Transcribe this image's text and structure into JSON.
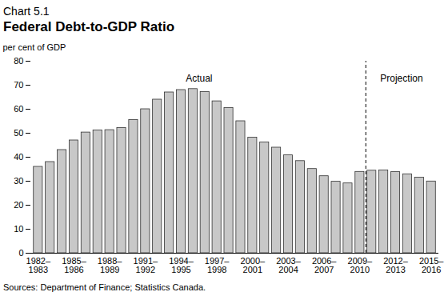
{
  "chart_data": {
    "type": "bar",
    "subtitle": "Chart 5.1",
    "title": "Federal Debt-to-GDP Ratio",
    "y_label": "per cent of GDP",
    "source": "Sources: Department of Finance; Statistics Canada.",
    "categories": [
      "1982–1983",
      null,
      null,
      "1985–1986",
      null,
      null,
      "1988–1989",
      null,
      null,
      "1991–1992",
      null,
      null,
      "1994–1995",
      null,
      null,
      "1997–1998",
      null,
      null,
      "2000–2001",
      null,
      null,
      "2003–2004",
      null,
      null,
      "2006–2007",
      null,
      null,
      "2009–2010",
      null,
      null,
      "2012–2013",
      null,
      null,
      "2015–2016"
    ],
    "series": [
      {
        "name": "Actual",
        "color": "#c8c8c8",
        "values": [
          36.0,
          38.0,
          43.0,
          47.0,
          50.3,
          51.2,
          51.3,
          52.2,
          55.5,
          60.0,
          64.0,
          67.0,
          68.0,
          68.4,
          67.2,
          63.3,
          60.5,
          55.0,
          48.2,
          46.2,
          44.0,
          40.8,
          38.4,
          35.1,
          32.1,
          29.8,
          29.1,
          33.9,
          null,
          null,
          null,
          null,
          null,
          null
        ]
      },
      {
        "name": "Projection",
        "color": "#c8c8c8",
        "values": [
          null,
          null,
          null,
          null,
          null,
          null,
          null,
          null,
          null,
          null,
          null,
          null,
          null,
          null,
          null,
          null,
          null,
          null,
          null,
          null,
          null,
          null,
          null,
          null,
          null,
          null,
          null,
          null,
          34.4,
          34.5,
          33.8,
          32.9,
          31.5,
          29.9
        ]
      }
    ],
    "ylim": [
      0,
      80
    ],
    "yticks": [
      0,
      10,
      20,
      30,
      40,
      50,
      60,
      70,
      80
    ],
    "grid": false
  }
}
